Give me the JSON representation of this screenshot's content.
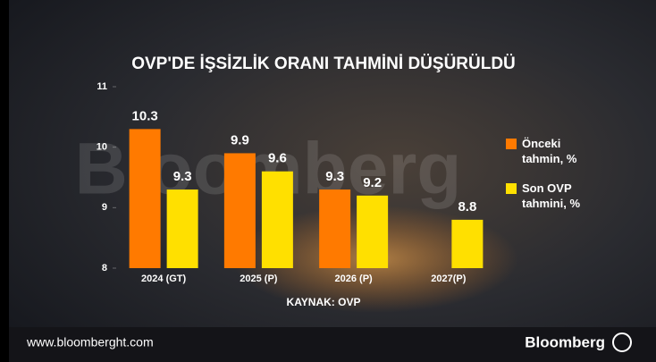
{
  "chart_data": {
    "type": "bar",
    "title": "OVP'DE İŞSİZLİK ORANI TAHMİNİ DÜŞÜRÜLDÜ",
    "categories": [
      "2024 (GT)",
      "2025 (P)",
      "2026 (P)",
      "2027(P)"
    ],
    "series": [
      {
        "name": "Önceki tahmin, %",
        "color": "#ff7a00",
        "values": [
          10.3,
          9.9,
          9.3,
          null
        ]
      },
      {
        "name": "Son OVP tahmini, %",
        "color": "#ffe000",
        "values": [
          9.3,
          9.6,
          9.2,
          8.8
        ]
      }
    ],
    "ylim": [
      8,
      11
    ],
    "yticks": [
      8,
      9,
      10,
      11
    ],
    "grid": false,
    "source": "KAYNAK: OVP",
    "watermark": "Bloomberg",
    "footer": {
      "url": "www.bloomberght.com",
      "brand": "Bloomberg"
    }
  }
}
